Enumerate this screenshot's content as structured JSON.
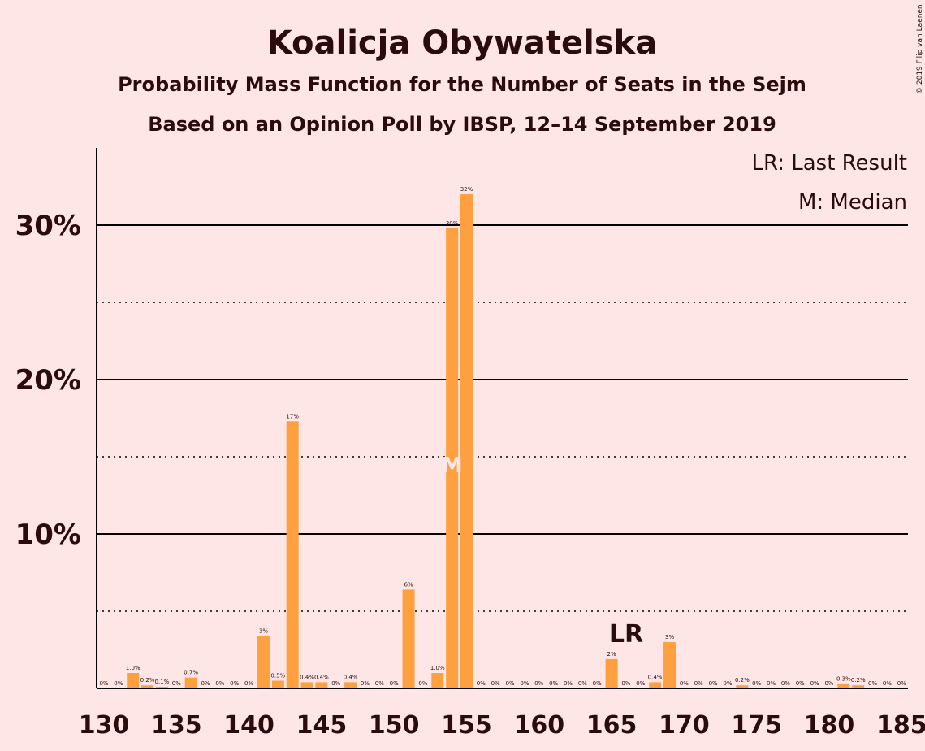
{
  "chart_data": {
    "type": "bar",
    "title": "Koalicja Obywatelska",
    "subtitle": "Probability Mass Function for the Number of Seats in the Sejm",
    "subtitle2": "Based on an Opinion Poll by IBSP, 12–14 September 2019",
    "copyright": "© 2019 Filip van Laenen",
    "legend": [
      "LR: Last Result",
      "M: Median"
    ],
    "legend_position": "top-right",
    "x_ticks": [
      "130",
      "135",
      "140",
      "145",
      "150",
      "155",
      "160",
      "165",
      "170",
      "175",
      "180",
      "185"
    ],
    "y_ticks": [
      "10%",
      "20%",
      "30%"
    ],
    "ylim": [
      0,
      35
    ],
    "xlim": [
      130,
      185
    ],
    "seats": [
      130,
      131,
      132,
      133,
      134,
      135,
      136,
      137,
      138,
      139,
      140,
      141,
      142,
      143,
      144,
      145,
      146,
      147,
      148,
      149,
      150,
      151,
      152,
      153,
      154,
      155,
      156,
      157,
      158,
      159,
      160,
      161,
      162,
      163,
      164,
      165,
      166,
      167,
      168,
      169,
      170,
      171,
      172,
      173,
      174,
      175,
      176,
      177,
      178,
      179,
      180,
      181,
      182,
      183,
      184,
      185
    ],
    "values": [
      0,
      0,
      1.0,
      0.2,
      0.1,
      0,
      0.7,
      0,
      0,
      0,
      0,
      3.4,
      0.5,
      17.3,
      0.4,
      0.4,
      0,
      0.4,
      0,
      0,
      0,
      6.4,
      0,
      1.0,
      29.8,
      32.0,
      0,
      0,
      0,
      0,
      0,
      0,
      0,
      0,
      0,
      1.9,
      0,
      0,
      0.4,
      3.0,
      0,
      0,
      0,
      0,
      0.2,
      0,
      0,
      0,
      0,
      0,
      0,
      0.3,
      0.2,
      0,
      0,
      0
    ],
    "labels": [
      "0%",
      "0%",
      "1.0%",
      "0.2%",
      "0.1%",
      "0%",
      "0.7%",
      "0%",
      "0%",
      "0%",
      "0%",
      "3%",
      "0.5%",
      "17%",
      "0.4%",
      "0.4%",
      "0%",
      "0.4%",
      "0%",
      "0%",
      "0%",
      "6%",
      "0%",
      "1.0%",
      "30%",
      "32%",
      "0%",
      "0%",
      "0%",
      "0%",
      "0%",
      "0%",
      "0%",
      "0%",
      "0%",
      "2%",
      "0%",
      "0%",
      "0.4%",
      "3%",
      "0%",
      "0%",
      "0%",
      "0%",
      "0.2%",
      "0%",
      "0%",
      "0%",
      "0%",
      "0%",
      "0%",
      "0.3%",
      "0.2%",
      "0%",
      "0%",
      "0%"
    ],
    "last_result": {
      "seat": 166,
      "label": "LR"
    },
    "median": {
      "seat": 154,
      "label": "M"
    },
    "colors": {
      "bar": "#ffa040",
      "background": "#ffe6e6",
      "text": "#2b0b0b"
    }
  }
}
